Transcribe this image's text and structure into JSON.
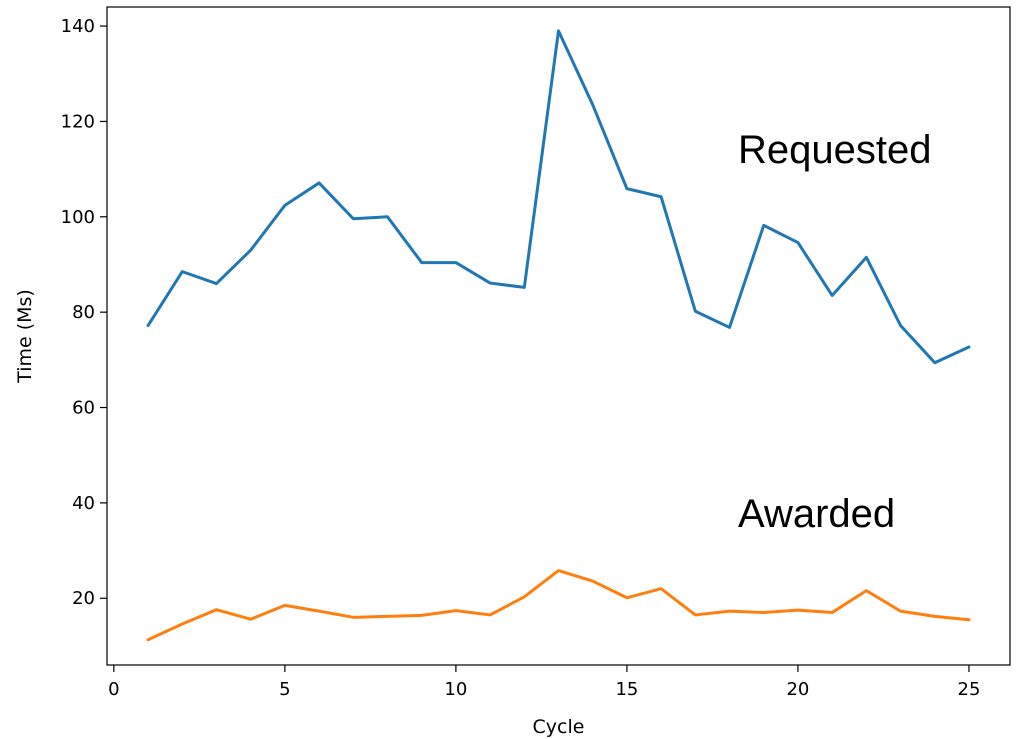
{
  "chart_data": {
    "type": "line",
    "title": "",
    "xlabel": "Cycle",
    "ylabel": "Time (Ms)",
    "xlim": [
      -0.2,
      26.2
    ],
    "ylim": [
      6,
      144
    ],
    "xticks": [
      0,
      5,
      10,
      15,
      20,
      25
    ],
    "yticks": [
      20,
      40,
      60,
      80,
      100,
      120,
      140
    ],
    "grid": false,
    "legend": "none",
    "x": [
      1,
      2,
      3,
      4,
      5,
      6,
      7,
      8,
      9,
      10,
      11,
      12,
      13,
      14,
      15,
      16,
      17,
      18,
      19,
      20,
      21,
      22,
      23,
      24,
      25
    ],
    "series": [
      {
        "name": "Requested",
        "color": "#1f77b4",
        "values": [
          77.2,
          88.5,
          86.0,
          93.0,
          102.4,
          107.1,
          99.6,
          100.0,
          90.4,
          90.4,
          86.1,
          85.2,
          139.0,
          123.5,
          105.9,
          104.2,
          80.2,
          76.8,
          98.2,
          94.6,
          83.5,
          91.5,
          77.2,
          69.4,
          72.7
        ]
      },
      {
        "name": "Awarded",
        "color": "#ff7f0e",
        "values": [
          11.3,
          14.6,
          17.6,
          15.6,
          18.5,
          17.3,
          16.0,
          16.2,
          16.4,
          17.4,
          16.5,
          20.3,
          25.8,
          23.6,
          20.1,
          22.0,
          16.5,
          17.3,
          17.0,
          17.5,
          17.0,
          21.6,
          17.3,
          16.2,
          15.5
        ]
      }
    ]
  }
}
